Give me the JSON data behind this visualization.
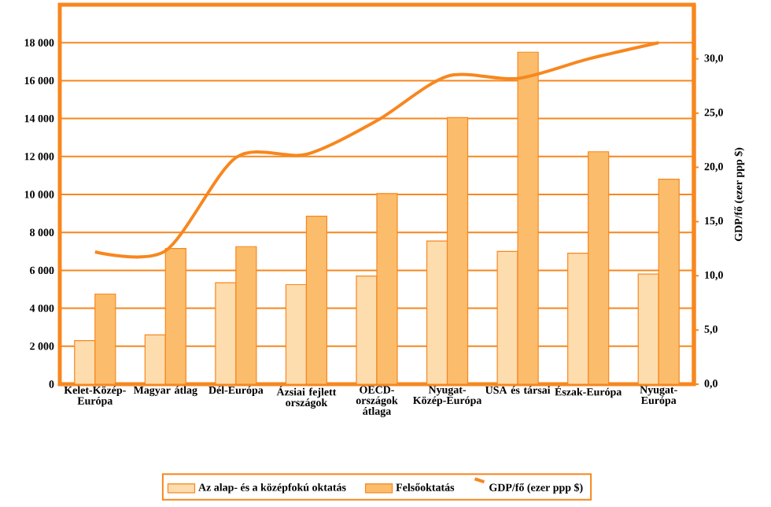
{
  "chart_data": {
    "type": "bar",
    "categories": [
      "Kelet-Közép-Európa",
      "Magyar átlag",
      "Dél-Európa",
      "Ázsiai fejlett országok",
      "OECD-országok átlaga",
      "Nyugat-Közép-Európa",
      "USA és társai",
      "Észak-Európa",
      "Nyugat-Európa"
    ],
    "series": [
      {
        "name": "Az alap- és a középfokú oktatás",
        "color": "#fddcad",
        "values": [
          2300,
          2600,
          5350,
          5250,
          5700,
          7550,
          7000,
          6900,
          5800
        ]
      },
      {
        "name": "Felsőoktatás",
        "color": "#fbbd6c",
        "values": [
          4750,
          7150,
          7250,
          8850,
          10050,
          14050,
          17500,
          12250,
          10800
        ]
      },
      {
        "name": "GDP/fő (ezer ppp $)",
        "type": "line",
        "axis": "y2",
        "color": "#f7871f",
        "values": [
          12.2,
          12.3,
          20.9,
          21.2,
          24.3,
          28.4,
          28.2,
          30.0,
          31.5
        ]
      }
    ],
    "ylim": [
      0,
      20000
    ],
    "yticks": [
      0,
      {
        "value": 2000,
        "label": "2 000"
      },
      {
        "value": 4000,
        "label": "4 000"
      },
      {
        "value": 6000,
        "label": "6 000"
      },
      {
        "value": 8000,
        "label": "8 000"
      },
      {
        "value": 10000,
        "label": "10 000"
      },
      {
        "value": 12000,
        "label": "12 000"
      },
      {
        "value": 14000,
        "label": "14 000"
      },
      {
        "value": 16000,
        "label": "16 000"
      },
      {
        "value": 18000,
        "label": "18 000"
      }
    ],
    "y2lim": [
      0,
      35
    ],
    "y2ticks": [
      {
        "value": 0,
        "label": "0,0"
      },
      {
        "value": 5,
        "label": "5,0"
      },
      {
        "value": 10,
        "label": "10,0"
      },
      {
        "value": 15,
        "label": "15,0"
      },
      {
        "value": 20,
        "label": "20,0"
      },
      {
        "value": 25,
        "label": "25,0"
      },
      {
        "value": 30,
        "label": "30,0"
      }
    ],
    "y2label": "GDP/fő (ezer ppp $)",
    "grid": "y",
    "legend": "bottom"
  }
}
